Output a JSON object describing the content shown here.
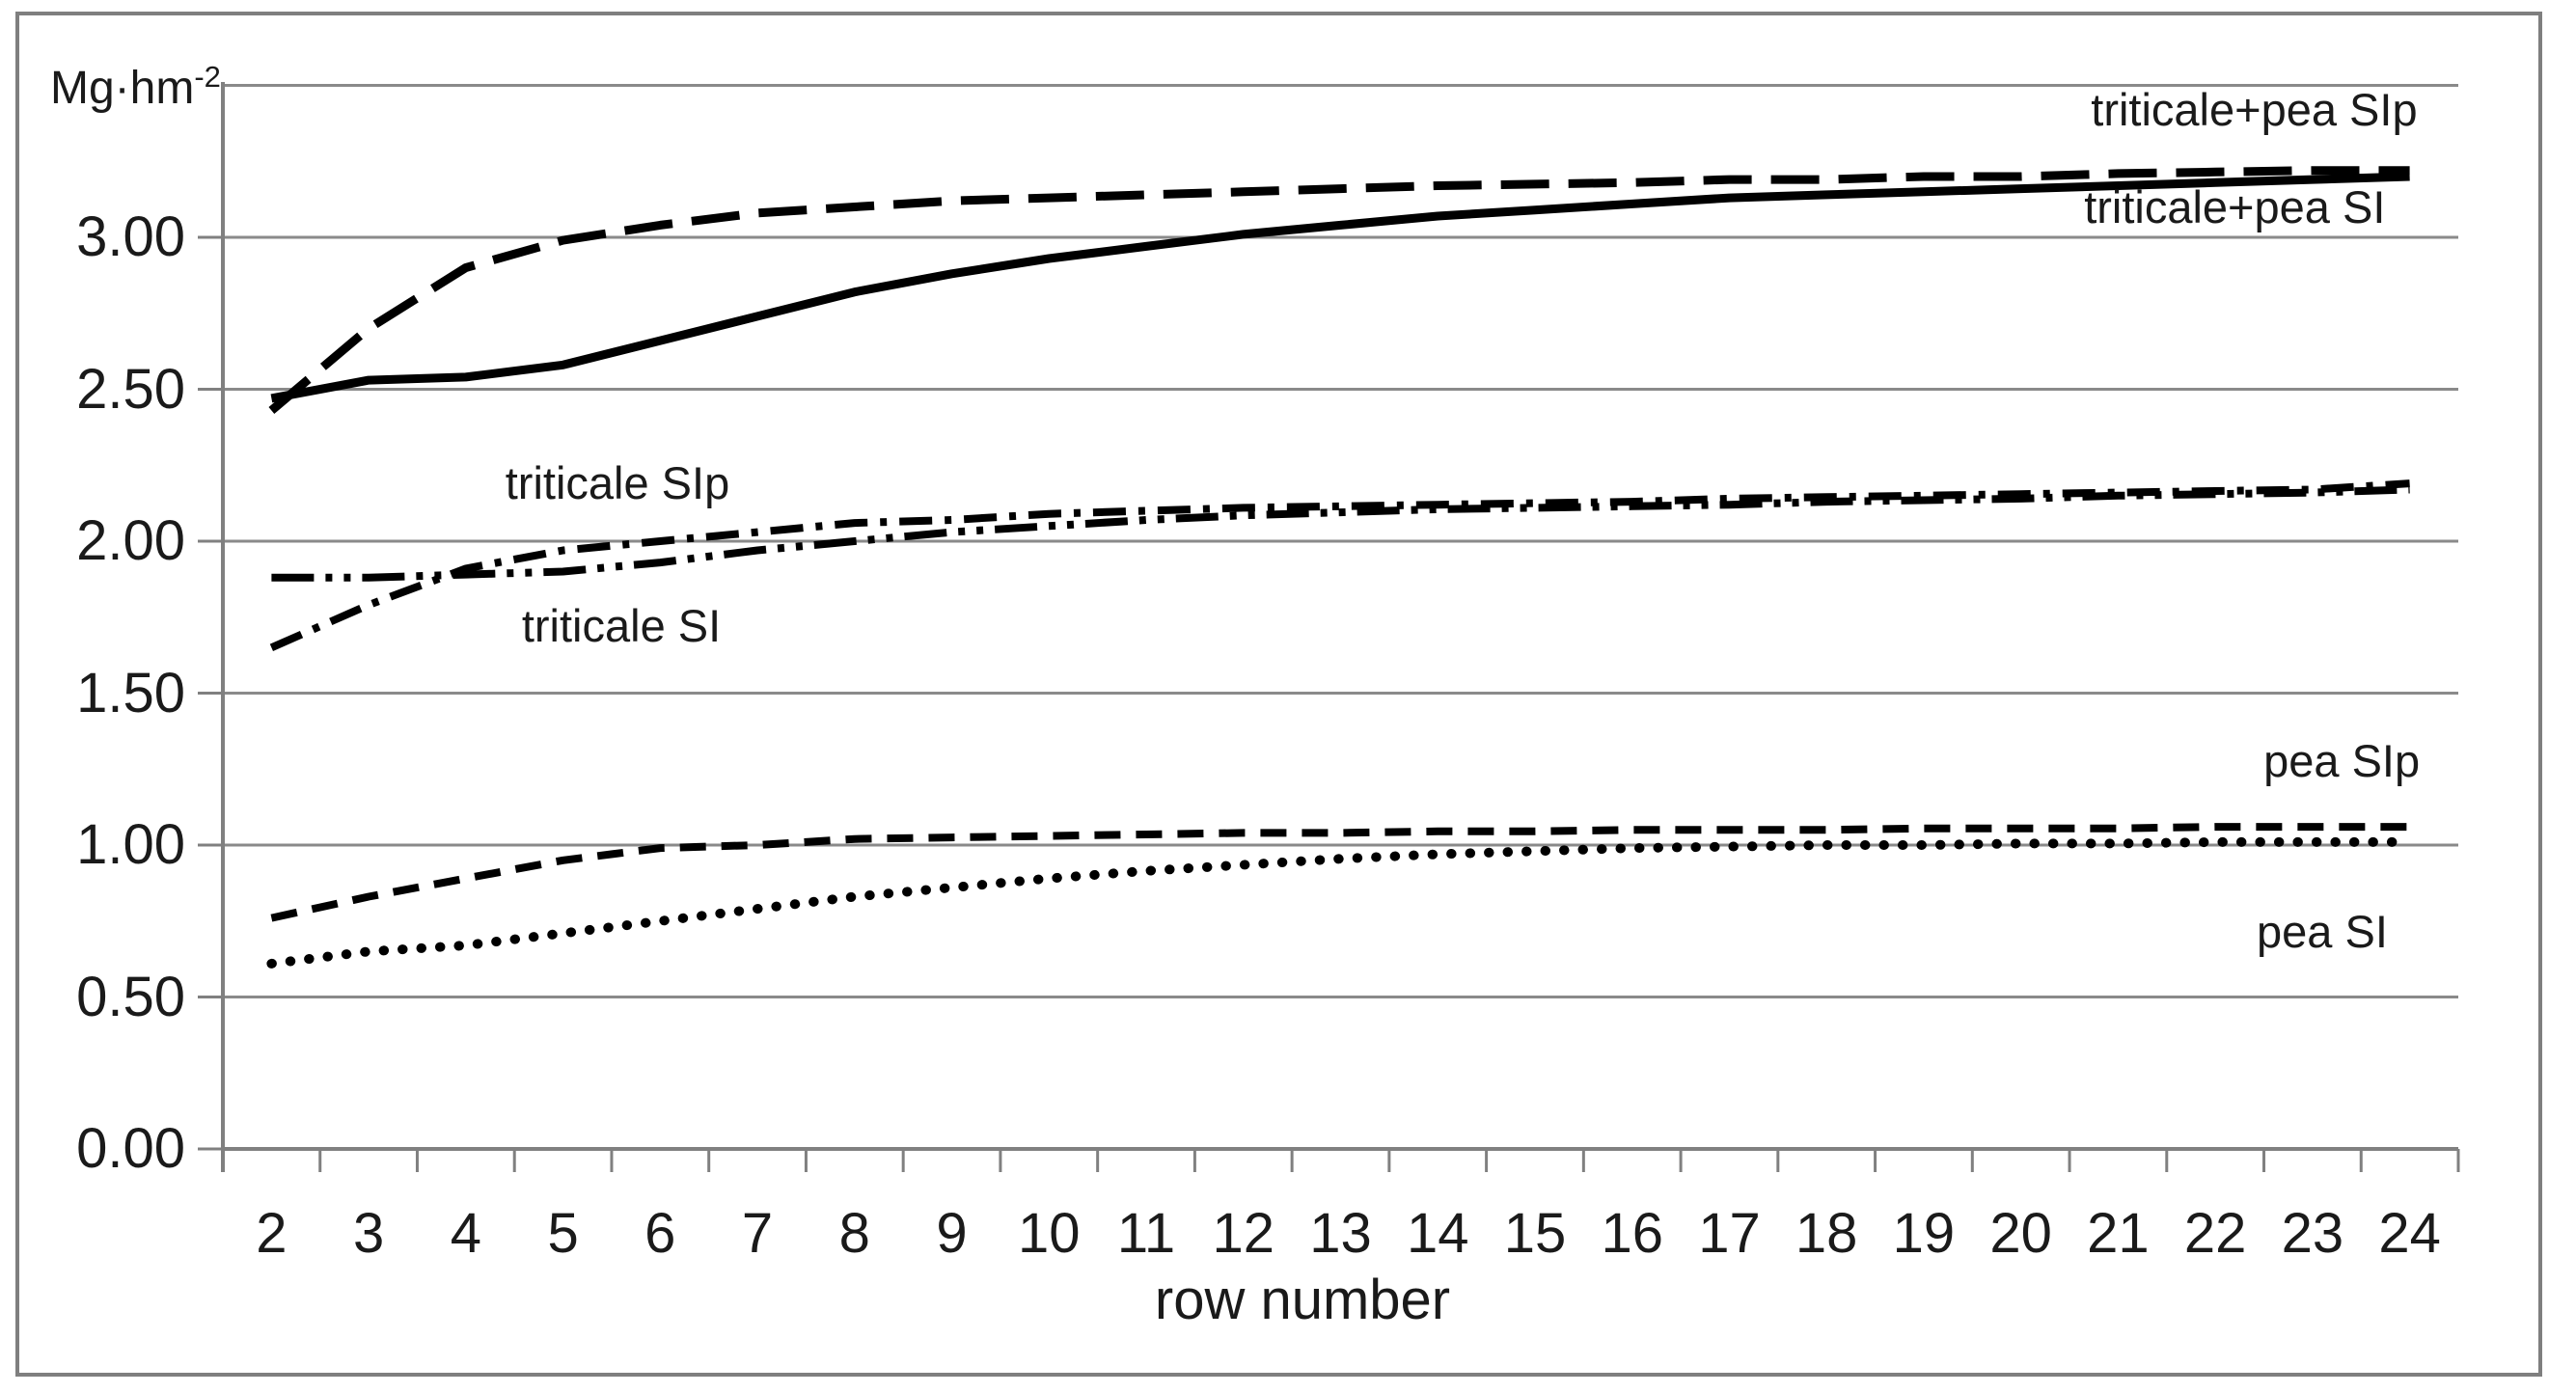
{
  "axes": {
    "y_title_base": "Mg·hm",
    "y_title_sup": "-2",
    "x_title": "row number",
    "y_tick_labels": [
      "3.00",
      "2.50",
      "2.00",
      "1.50",
      "1.00",
      "0.50",
      "0.00"
    ],
    "x_tick_labels": [
      "2",
      "3",
      "4",
      "5",
      "6",
      "7",
      "8",
      "9",
      "10",
      "11",
      "12",
      "13",
      "14",
      "15",
      "16",
      "17",
      "18",
      "19",
      "20",
      "21",
      "22",
      "23",
      "24"
    ]
  },
  "chart_data": {
    "type": "line",
    "title": "",
    "xlabel": "row number",
    "ylabel": "Mg·hm-2",
    "x": [
      2,
      3,
      4,
      5,
      6,
      7,
      8,
      9,
      10,
      11,
      12,
      13,
      14,
      15,
      16,
      17,
      18,
      19,
      20,
      21,
      22,
      23,
      24
    ],
    "ylim": [
      0,
      3.5
    ],
    "y_major_unit": 0.5,
    "grid": "horizontal-only",
    "legend_position": "inline labels beside lines",
    "series": [
      {
        "name": "triticale+pea SIp",
        "line_style": "long-dash",
        "values": [
          2.43,
          2.7,
          2.9,
          2.99,
          3.04,
          3.08,
          3.1,
          3.12,
          3.13,
          3.14,
          3.15,
          3.16,
          3.17,
          3.175,
          3.18,
          3.19,
          3.19,
          3.2,
          3.2,
          3.21,
          3.215,
          3.22,
          3.22
        ]
      },
      {
        "name": "triticale+pea SI",
        "line_style": "solid",
        "values": [
          2.47,
          2.53,
          2.54,
          2.58,
          2.66,
          2.74,
          2.82,
          2.88,
          2.93,
          2.97,
          3.01,
          3.04,
          3.07,
          3.09,
          3.11,
          3.13,
          3.14,
          3.15,
          3.16,
          3.17,
          3.18,
          3.19,
          3.2
        ]
      },
      {
        "name": "triticale SIp",
        "line_style": "dash-dot",
        "values": [
          1.65,
          1.79,
          1.91,
          1.97,
          2.0,
          2.03,
          2.06,
          2.07,
          2.09,
          2.1,
          2.11,
          2.115,
          2.12,
          2.125,
          2.13,
          2.14,
          2.145,
          2.15,
          2.155,
          2.16,
          2.165,
          2.17,
          2.19
        ]
      },
      {
        "name": "triticale SI",
        "line_style": "dash-dot-dot",
        "values": [
          1.88,
          1.88,
          1.89,
          1.9,
          1.93,
          1.97,
          2.0,
          2.03,
          2.05,
          2.07,
          2.085,
          2.095,
          2.105,
          2.11,
          2.115,
          2.12,
          2.13,
          2.135,
          2.14,
          2.15,
          2.155,
          2.16,
          2.17
        ]
      },
      {
        "name": "pea SIp",
        "line_style": "short-dash",
        "values": [
          0.76,
          0.83,
          0.89,
          0.95,
          0.99,
          1.0,
          1.02,
          1.025,
          1.03,
          1.035,
          1.04,
          1.04,
          1.045,
          1.045,
          1.05,
          1.05,
          1.05,
          1.055,
          1.055,
          1.055,
          1.06,
          1.06,
          1.06
        ]
      },
      {
        "name": "pea SI",
        "line_style": "dotted",
        "values": [
          0.61,
          0.65,
          0.67,
          0.71,
          0.75,
          0.79,
          0.83,
          0.86,
          0.89,
          0.915,
          0.935,
          0.955,
          0.97,
          0.98,
          0.99,
          0.995,
          1.0,
          1.0,
          1.005,
          1.005,
          1.01,
          1.01,
          1.01
        ]
      }
    ],
    "annotations": [
      {
        "label": "triticale+pea SIp",
        "row": 22.4,
        "value": 3.42
      },
      {
        "label": "triticale+pea SI",
        "row": 22.2,
        "value": 3.1
      },
      {
        "label": "triticale SIp",
        "row": 5.56,
        "value": 2.19
      },
      {
        "label": "triticale SI",
        "row": 5.6,
        "value": 1.72
      },
      {
        "label": "pea SIp",
        "row": 23.3,
        "value": 1.275
      },
      {
        "label": "pea SI",
        "row": 23.1,
        "value": 0.715
      }
    ],
    "colors": {
      "series": "#000000",
      "gridlines": "#8a8a8a",
      "axis": "#808080",
      "chart_border": "#7f7f7f",
      "text": "#1a1a1a",
      "background": "#ffffff"
    }
  }
}
